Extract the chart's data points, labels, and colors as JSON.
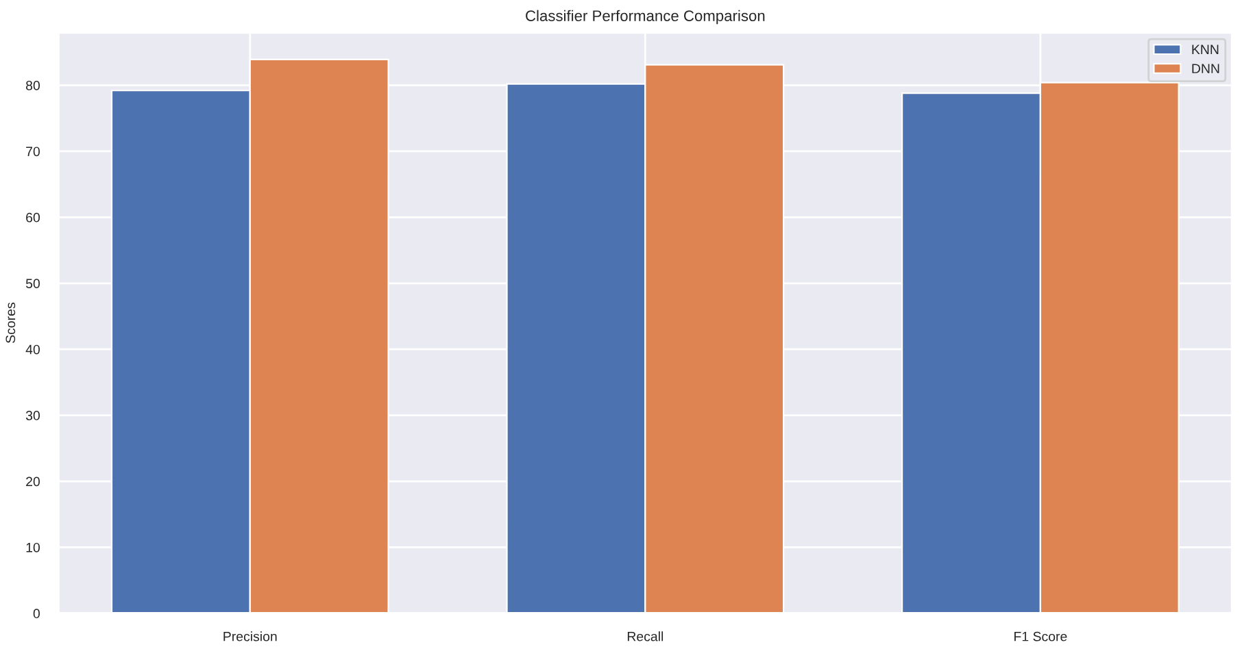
{
  "chart_data": {
    "type": "bar",
    "title": "Classifier Performance Comparison",
    "ylabel": "Scores",
    "categories": [
      "Precision",
      "Recall",
      "F1 Score"
    ],
    "series": [
      {
        "name": "KNN",
        "color": "#4c72b0",
        "values": [
          79.2,
          80.2,
          78.8
        ]
      },
      {
        "name": "DNN",
        "color": "#dd8452",
        "values": [
          83.9,
          83.1,
          80.4
        ]
      }
    ],
    "ylim": [
      0,
      88
    ],
    "yticks": [
      0,
      10,
      20,
      30,
      40,
      50,
      60,
      70,
      80
    ],
    "grid": true,
    "legend": "top right"
  }
}
